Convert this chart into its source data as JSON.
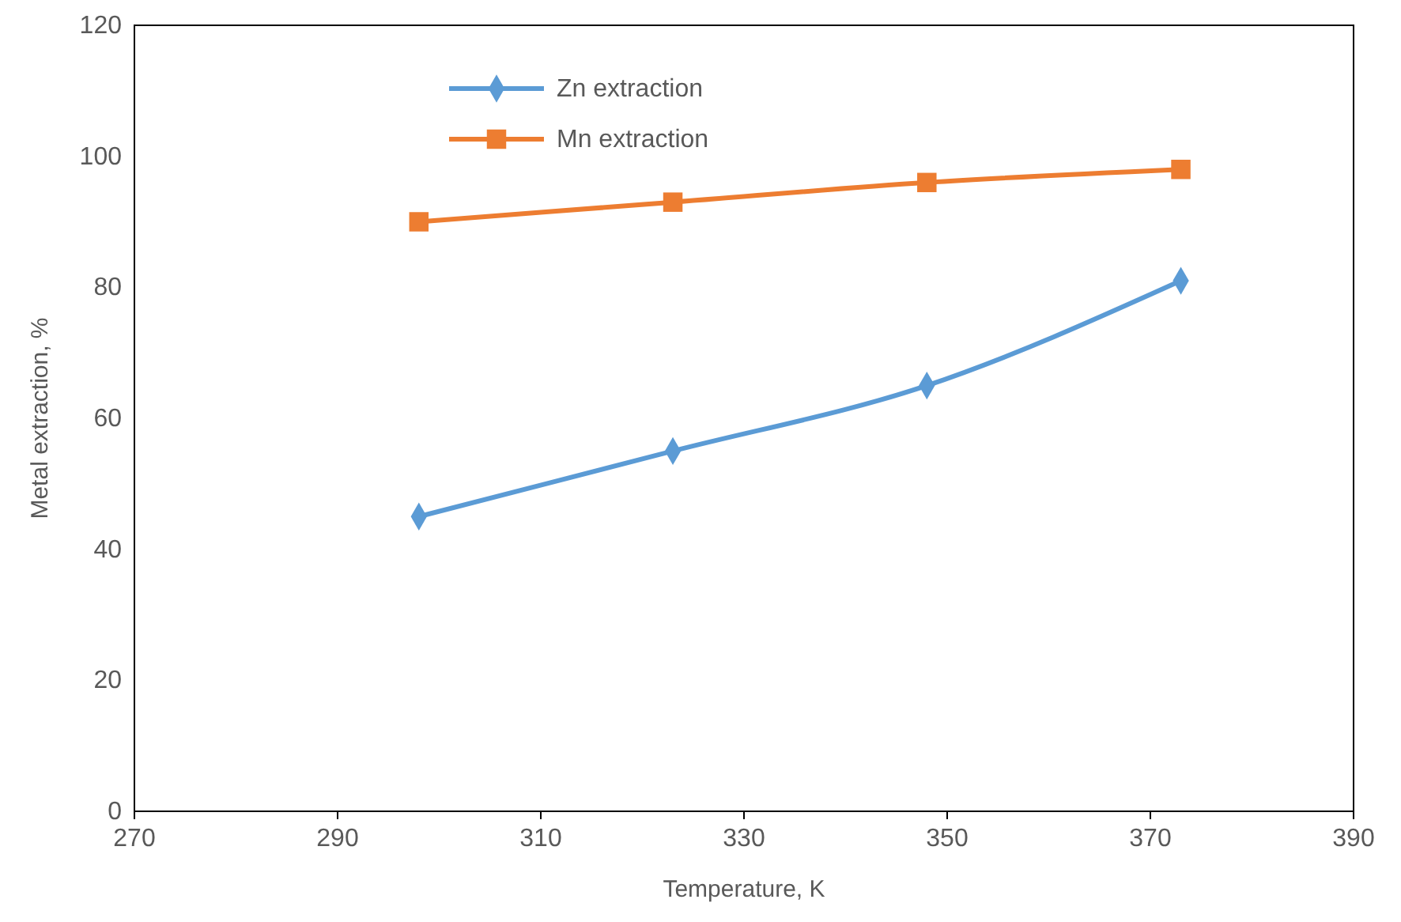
{
  "chart_data": {
    "type": "line",
    "xlabel": "Temperature, K",
    "ylabel": "Metal extraction, %",
    "series": [
      {
        "name": "Zn extraction",
        "color": "#5b9bd5",
        "marker": "diamond",
        "x": [
          298,
          323,
          348,
          373
        ],
        "values": [
          45,
          55,
          65,
          81
        ]
      },
      {
        "name": "Mn extraction",
        "color": "#ed7d31",
        "marker": "square",
        "x": [
          298,
          323,
          348,
          373
        ],
        "values": [
          90,
          93,
          96,
          98
        ]
      }
    ],
    "xlim": [
      270,
      390
    ],
    "xticks": [
      270,
      290,
      310,
      330,
      350,
      370,
      390
    ],
    "ylim": [
      0,
      120
    ],
    "yticks": [
      0,
      20,
      40,
      60,
      80,
      100,
      120
    ],
    "grid": false,
    "legend": "top",
    "line_style": "solid"
  }
}
